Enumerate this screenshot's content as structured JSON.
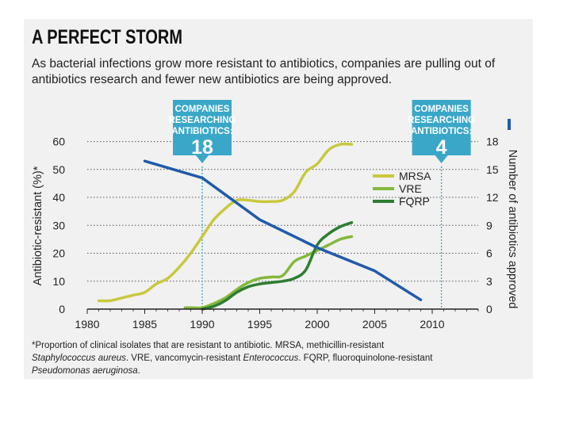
{
  "header": {
    "title": "A PERFECT STORM",
    "subtitle": "As bacterial infections grow more resistant to antibiotics, companies are pulling out of antibiotics research and fewer new antibiotics are being approved."
  },
  "footnote": {
    "line1": "*Proportion of clinical isolates that are resistant to antibiotic. MRSA, methicillin-resistant",
    "line2_italic": "Staphylococcus aureus",
    "line2_rest": ". VRE, vancomycin-resistant ",
    "line2_italic2": "Enterococcus",
    "line2_end": ". FQRP, fluoroquinolone-resistant",
    "line3_italic": "Pseudomonas aeruginosa",
    "line3_end": "."
  },
  "chart_data": {
    "type": "line",
    "xlabel": "",
    "ylabel": "Antibiotic-resistant (%)*",
    "y2label": "Number of antibiotics approved",
    "xlim": [
      1980,
      2014
    ],
    "ylim": [
      0,
      63
    ],
    "y2lim": [
      0,
      18.9
    ],
    "xticks": [
      1980,
      1985,
      1990,
      1995,
      2000,
      2005,
      2010
    ],
    "yticks": [
      0,
      10,
      20,
      30,
      40,
      50,
      60
    ],
    "y2ticks": [
      0,
      3,
      6,
      9,
      12,
      15,
      18
    ],
    "grid": "horizontal dotted",
    "legend_position": "upper-right",
    "series": [
      {
        "name": "MRSA",
        "axis": "left",
        "color": "#c9c83e",
        "x": [
          1981,
          1982,
          1983,
          1984,
          1985,
          1986,
          1987,
          1988,
          1989,
          1990,
          1991,
          1992,
          1993,
          1994,
          1995,
          1996,
          1997,
          1998,
          1999,
          2000,
          2001,
          2002,
          2003
        ],
        "y": [
          3,
          3,
          4,
          5,
          6,
          9,
          11,
          15,
          20,
          26,
          32,
          36,
          39,
          39,
          38.5,
          38.5,
          39,
          42,
          49,
          52,
          57,
          59,
          59
        ]
      },
      {
        "name": "VRE",
        "axis": "left",
        "color": "#84b83a",
        "x": [
          1988.5,
          1989,
          1990,
          1991,
          1992,
          1993,
          1994,
          1995,
          1996,
          1997,
          1998,
          1999,
          2000,
          2001,
          2002,
          2003
        ],
        "y": [
          0.5,
          0.5,
          0.5,
          2,
          4,
          7,
          9.5,
          11,
          11.5,
          12,
          17,
          19,
          21,
          23,
          25,
          26
        ]
      },
      {
        "name": "FQRP",
        "axis": "left",
        "color": "#2e7d32",
        "x": [
          1990,
          1991,
          1992,
          1993,
          1994,
          1995,
          1996,
          1997,
          1998,
          1999,
          2000,
          2001,
          2002,
          2003
        ],
        "y": [
          0,
          1,
          3,
          6,
          8,
          9,
          9.5,
          10,
          11,
          14,
          23,
          27,
          29.5,
          31
        ]
      },
      {
        "name": "Number of antibiotics approved",
        "axis": "right",
        "color": "#1f5bab",
        "x": [
          1985,
          1990,
          1995,
          2000,
          2005,
          2009
        ],
        "y": [
          15.9,
          14.1,
          9.6,
          6.6,
          4.1,
          1.0
        ]
      }
    ],
    "annotations": [
      {
        "x": 1990,
        "line1": "COMPANIES",
        "line2": "RESEARCHING",
        "line3": "ANTIBIOTICS:",
        "value": "18"
      },
      {
        "x": 2010.8,
        "line1": "COMPANIES",
        "line2": "RESEARCHING",
        "line3": "ANTIBIOTICS:",
        "value": "4"
      }
    ]
  }
}
